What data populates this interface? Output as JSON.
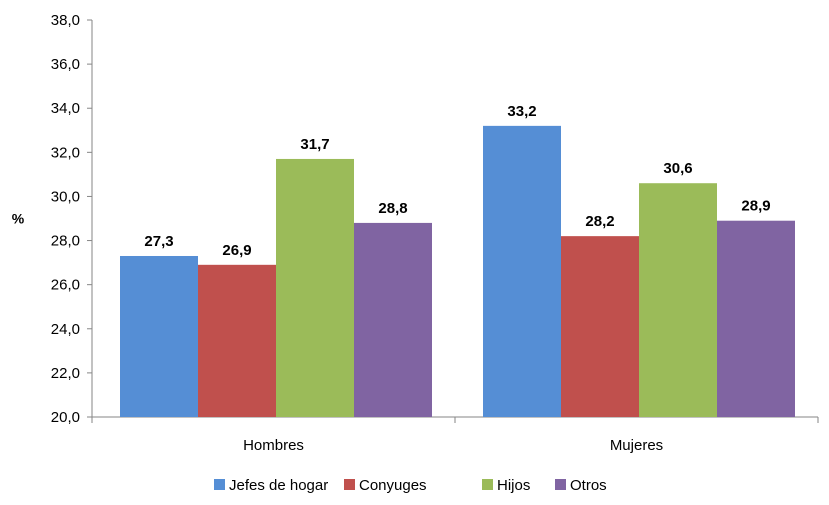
{
  "chart_data": {
    "type": "bar",
    "title": "",
    "xlabel": "",
    "ylabel": "%",
    "ylim": [
      20,
      38
    ],
    "ytick_step": 2,
    "ytick_labels": [
      "20,0",
      "22,0",
      "24,0",
      "26,0",
      "28,0",
      "30,0",
      "32,0",
      "34,0",
      "36,0",
      "38,0"
    ],
    "grid": false,
    "legend_position": "bottom",
    "categories": [
      "Hombres",
      "Mujeres"
    ],
    "series": [
      {
        "name": "Jefes de hogar",
        "color": "#558ED5",
        "values": [
          27.3,
          33.2
        ],
        "labels": [
          "27,3",
          "33,2"
        ]
      },
      {
        "name": "Conyuges",
        "color": "#C0504D",
        "values": [
          26.9,
          28.2
        ],
        "labels": [
          "26,9",
          "28,2"
        ]
      },
      {
        "name": "Hijos",
        "color": "#9BBB59",
        "values": [
          31.7,
          30.6
        ],
        "labels": [
          "31,7",
          "30,6"
        ]
      },
      {
        "name": "Otros",
        "color": "#8064A2",
        "values": [
          28.8,
          28.9
        ],
        "labels": [
          "28,8",
          "28,9"
        ]
      }
    ]
  }
}
